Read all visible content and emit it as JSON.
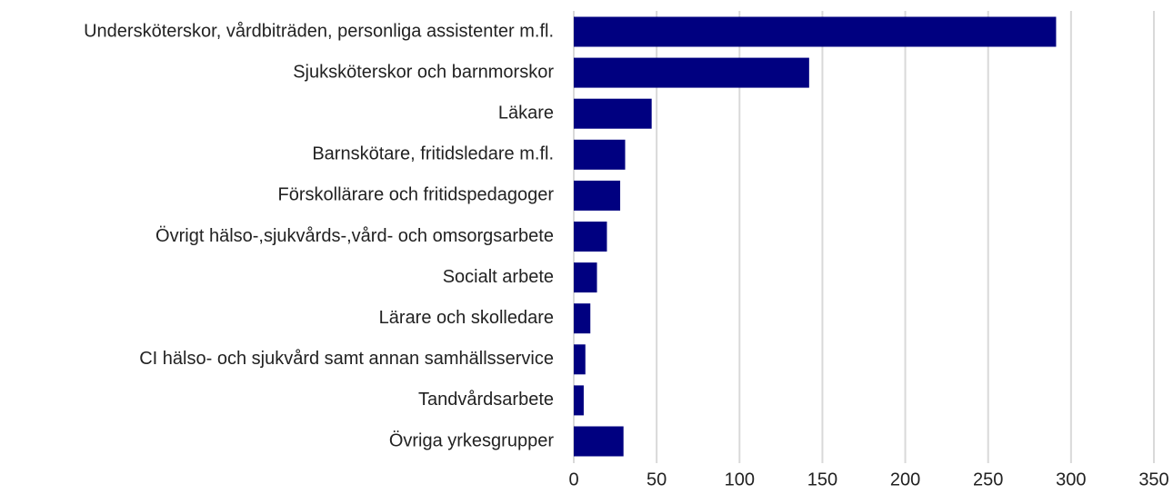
{
  "chart_data": {
    "type": "barh",
    "categories": [
      "Undersköterskor, vårdbiträden, personliga assistenter m.fl.",
      "Sjuksköterskor och barnmorskor",
      "Läkare",
      "Barnskötare, fritidsledare m.fl.",
      "Förskollärare och fritidspedagoger",
      "Övrigt hälso-,sjukvårds-,vård- och omsorgsarbete",
      "Socialt arbete",
      "Lärare och skolledare",
      "CI hälso- och sjukvård samt annan samhällsservice",
      "Tandvårdsarbete",
      "Övriga yrkesgrupper"
    ],
    "values": [
      291,
      142,
      47,
      31,
      28,
      20,
      14,
      10,
      7,
      6,
      30
    ],
    "color": "#000080",
    "xlim": [
      0,
      350
    ],
    "xticks": [
      0,
      50,
      100,
      150,
      200,
      250,
      300,
      350
    ],
    "grid": true
  }
}
